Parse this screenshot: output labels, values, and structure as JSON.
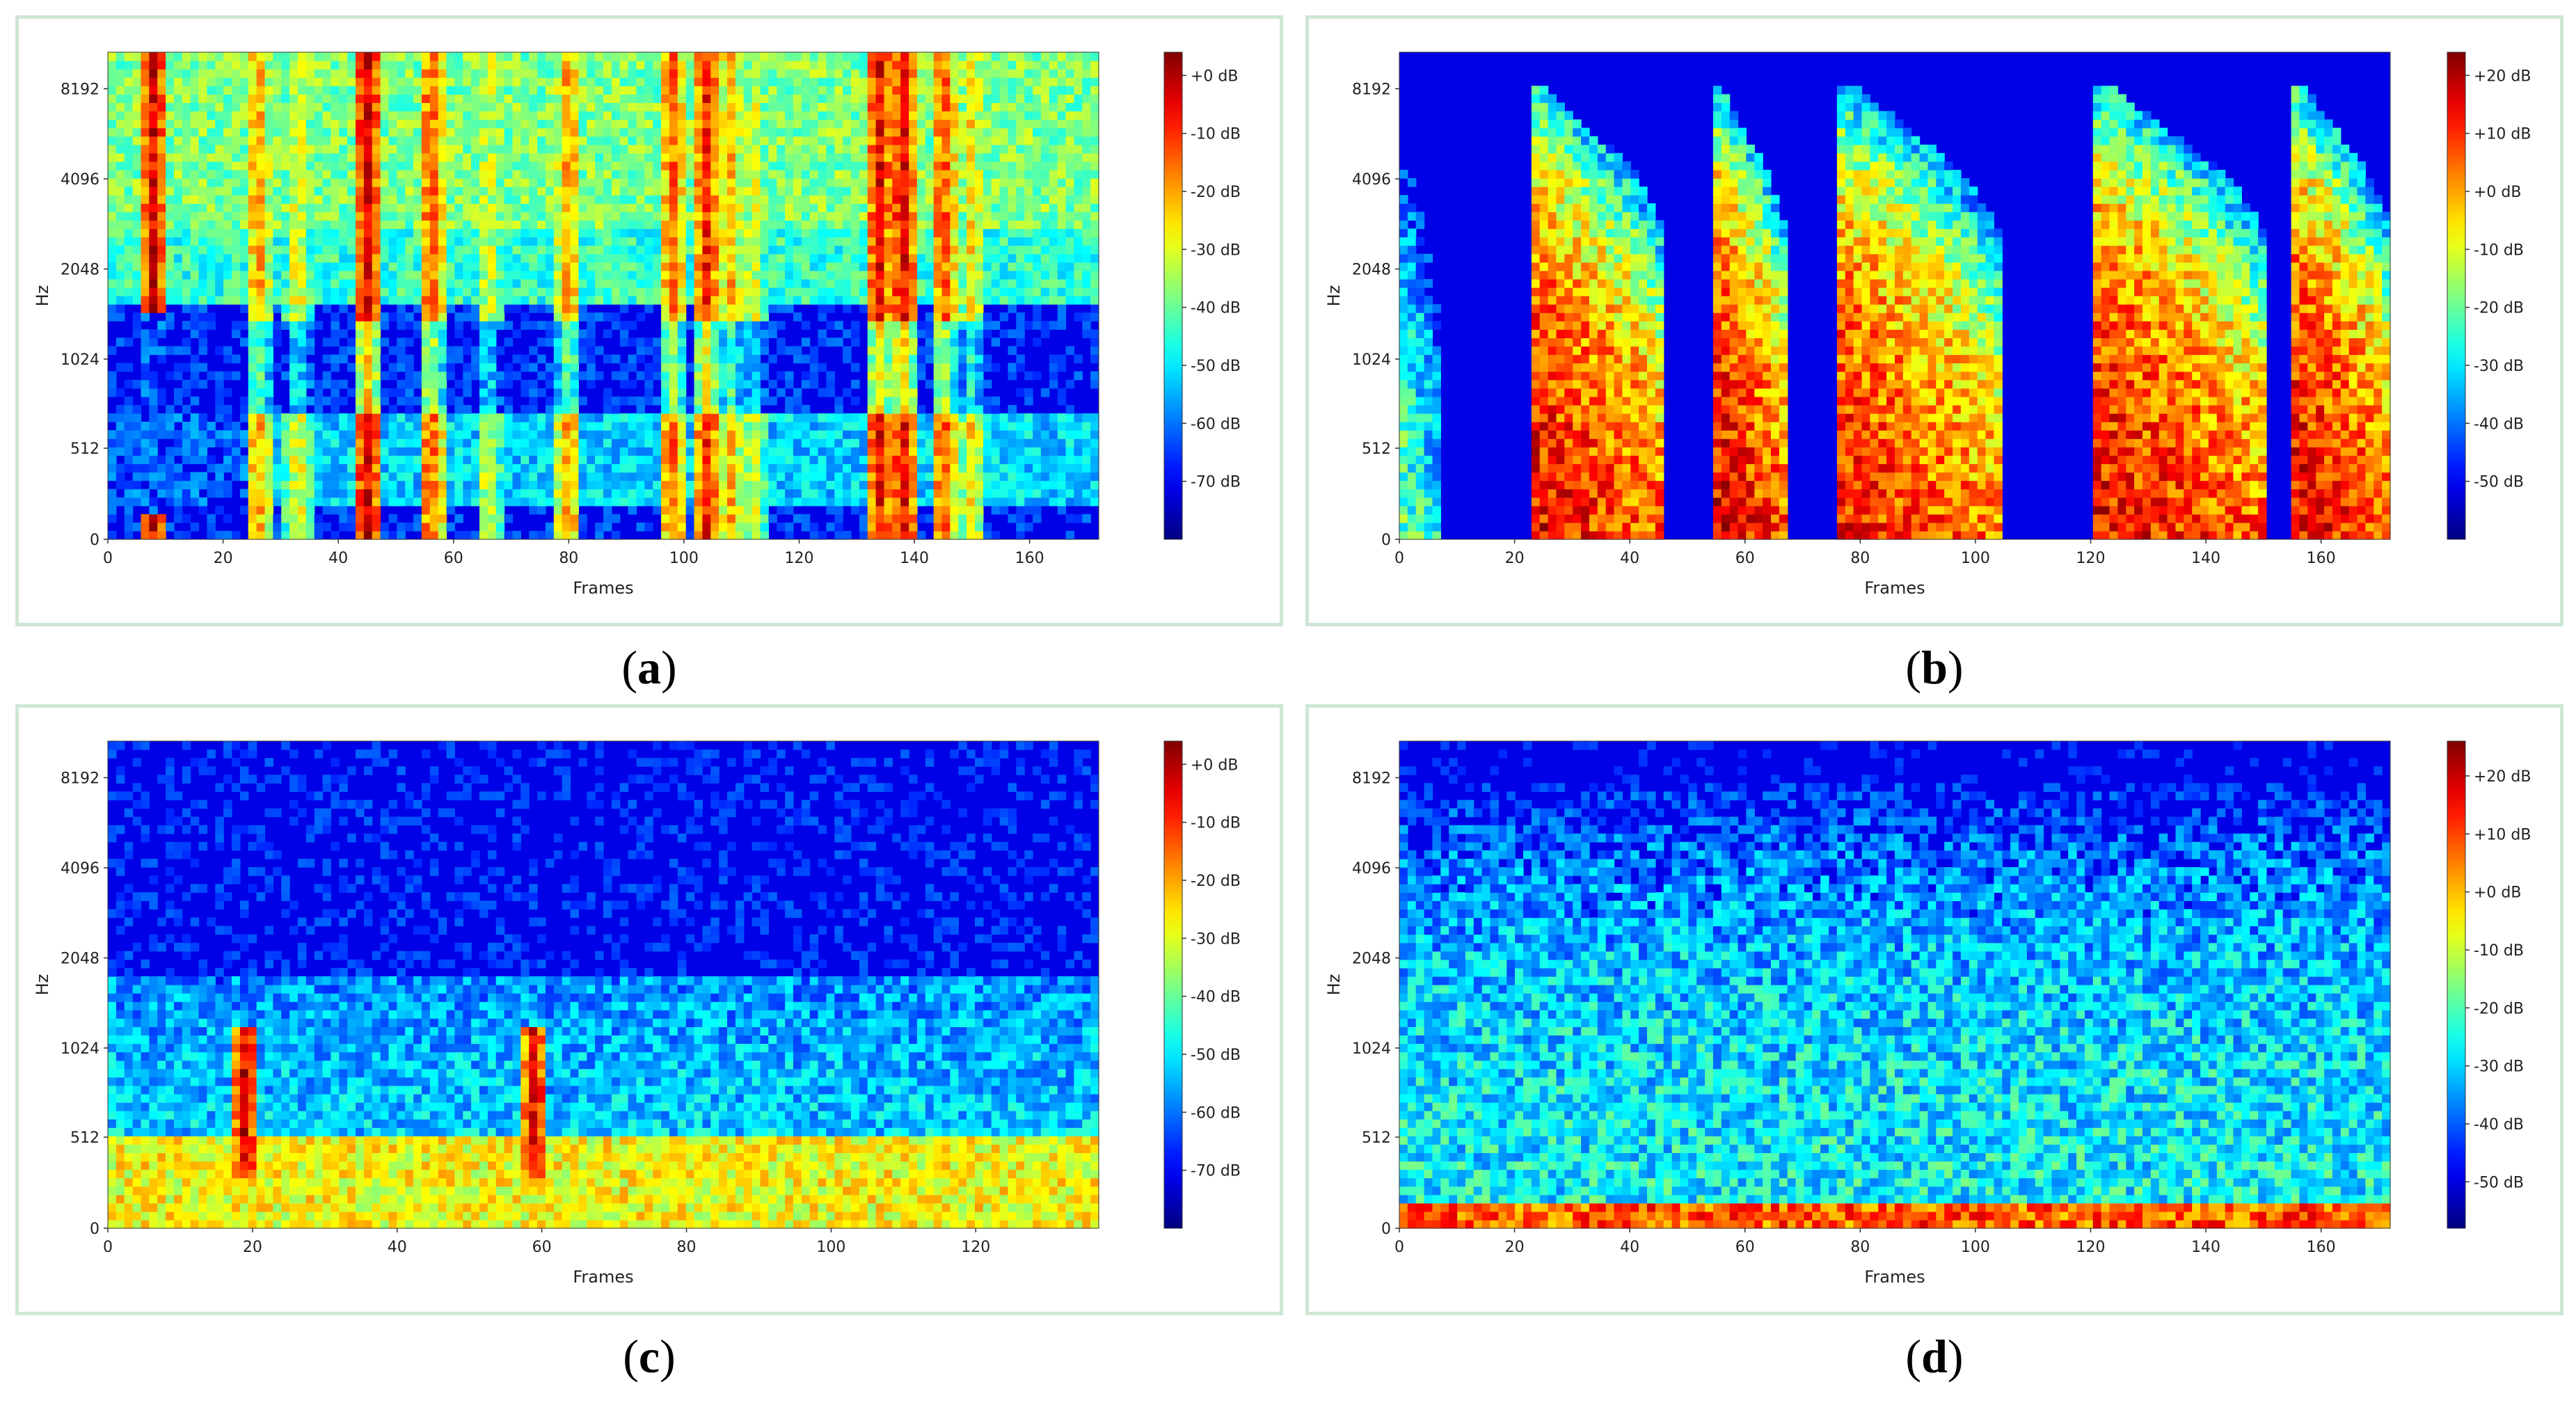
{
  "captions": {
    "a": "a",
    "b": "b",
    "c": "c",
    "d": "d"
  },
  "chart_data": [
    {
      "id": "a",
      "type": "heatmap",
      "xlabel": "Frames",
      "ylabel": "Hz",
      "x_ticks": [
        "0",
        "20",
        "40",
        "60",
        "80",
        "100",
        "120",
        "140",
        "160"
      ],
      "x_tick_values": [
        0,
        20,
        40,
        60,
        80,
        100,
        120,
        140,
        160
      ],
      "xlim": [
        0,
        172
      ],
      "y_ticks": [
        "0",
        "512",
        "1024",
        "2048",
        "4096",
        "8192"
      ],
      "colorbar_ticks": [
        "+0 dB",
        "-10 dB",
        "-20 dB",
        "-30 dB",
        "-40 dB",
        "-50 dB",
        "-60 dB",
        "-70 dB"
      ],
      "colorbar_range": [
        -80,
        4
      ],
      "colormap": "jet",
      "background_db": -67,
      "bands": [
        {
          "from": 1650,
          "db": -45
        },
        {
          "from": 3000,
          "db": -38
        }
      ],
      "events": [
        {
          "t": 8,
          "db": -4
        },
        {
          "t": 26,
          "db": -18
        },
        {
          "t": 33,
          "db": -26
        },
        {
          "t": 45,
          "db": -3
        },
        {
          "t": 56,
          "db": -12
        },
        {
          "t": 66,
          "db": -28
        },
        {
          "t": 80,
          "db": -18
        },
        {
          "t": 98,
          "db": -14
        },
        {
          "t": 104,
          "db": -8
        },
        {
          "t": 108,
          "db": -20
        },
        {
          "t": 112,
          "db": -28
        },
        {
          "t": 134,
          "db": -6
        },
        {
          "t": 138,
          "db": -4
        },
        {
          "t": 145,
          "db": -12
        },
        {
          "t": 150,
          "db": -24
        }
      ]
    },
    {
      "id": "b",
      "type": "heatmap",
      "xlabel": "Frames",
      "ylabel": "Hz",
      "x_ticks": [
        "0",
        "20",
        "40",
        "60",
        "80",
        "100",
        "120",
        "140",
        "160"
      ],
      "x_tick_values": [
        0,
        20,
        40,
        60,
        80,
        100,
        120,
        140,
        160
      ],
      "xlim": [
        0,
        172
      ],
      "y_ticks": [
        "0",
        "512",
        "1024",
        "2048",
        "4096",
        "8192"
      ],
      "colorbar_ticks": [
        "+20 dB",
        "+10 dB",
        "+0 dB",
        "-10 dB",
        "-20 dB",
        "-30 dB",
        "-40 dB",
        "-50 dB"
      ],
      "colorbar_range": [
        -60,
        24
      ],
      "colormap": "jet",
      "background_db": -56,
      "bursts": [
        {
          "start": 23,
          "end": 46,
          "db": 14
        },
        {
          "start": 54,
          "end": 67,
          "db": 16
        },
        {
          "start": 76,
          "end": 104,
          "db": 12
        },
        {
          "start": 120,
          "end": 150,
          "db": 14
        },
        {
          "start": 155,
          "end": 172,
          "db": 15
        },
        {
          "start": 0,
          "end": 7,
          "db": -20
        }
      ]
    },
    {
      "id": "c",
      "type": "heatmap",
      "xlabel": "Frames",
      "ylabel": "Hz",
      "x_ticks": [
        "0",
        "20",
        "40",
        "60",
        "80",
        "100",
        "120"
      ],
      "x_tick_values": [
        0,
        20,
        40,
        60,
        80,
        100,
        120
      ],
      "xlim": [
        0,
        137
      ],
      "y_ticks": [
        "0",
        "512",
        "1024",
        "2048",
        "4096",
        "8192"
      ],
      "colorbar_ticks": [
        "+0 dB",
        "-10 dB",
        "-20 dB",
        "-30 dB",
        "-40 dB",
        "-50 dB",
        "-60 dB",
        "-70 dB"
      ],
      "colorbar_range": [
        -80,
        4
      ],
      "colormap": "jet",
      "background_db": -70,
      "low_band_db": -28,
      "events": [
        {
          "t": 19,
          "db": -2
        },
        {
          "t": 59,
          "db": -3
        }
      ]
    },
    {
      "id": "d",
      "type": "heatmap",
      "xlabel": "Frames",
      "ylabel": "Hz",
      "x_ticks": [
        "0",
        "20",
        "40",
        "60",
        "80",
        "100",
        "120",
        "140",
        "160"
      ],
      "x_tick_values": [
        0,
        20,
        40,
        60,
        80,
        100,
        120,
        140,
        160
      ],
      "xlim": [
        0,
        172
      ],
      "y_ticks": [
        "0",
        "512",
        "1024",
        "2048",
        "4096",
        "8192"
      ],
      "colorbar_ticks": [
        "+20 dB",
        "+10 dB",
        "+0 dB",
        "-10 dB",
        "-20 dB",
        "-30 dB",
        "-40 dB",
        "-50 dB"
      ],
      "colorbar_range": [
        -58,
        26
      ],
      "colormap": "jet",
      "background_db": -52,
      "low_band_db": 8,
      "noise_db": -34
    }
  ]
}
